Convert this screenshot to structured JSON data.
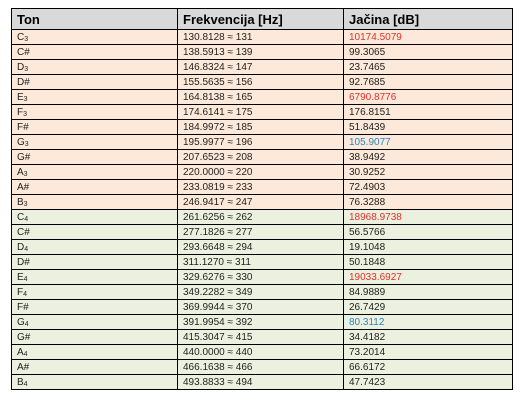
{
  "header": {
    "ton": "Ton",
    "frekvencija": "Frekvencija [Hz]",
    "jacina": "Jačina [dB]"
  },
  "colors": {
    "orange_band": "#fde9d9",
    "green_band": "#ebf1de",
    "header_bg": "#d9d9d9",
    "red_value": "#e0302a",
    "blue_value": "#2e86c1"
  },
  "rows": [
    {
      "note": "C",
      "octave": "3",
      "freq": "130.8128 ≈ 131",
      "db": "10174.5079",
      "band": "orange",
      "db_color": "red"
    },
    {
      "note": "C#",
      "octave": "",
      "freq": "138.5913 ≈ 139",
      "db": "99.3065",
      "band": "orange",
      "db_color": ""
    },
    {
      "note": "D",
      "octave": "3",
      "freq": "146.8324 ≈ 147",
      "db": "23.7465",
      "band": "orange",
      "db_color": ""
    },
    {
      "note": "D#",
      "octave": "",
      "freq": "155.5635 ≈  156",
      "db": "92.7685",
      "band": "orange",
      "db_color": ""
    },
    {
      "note": "E",
      "octave": "3",
      "freq": "164.8138 ≈ 165",
      "db": "6790.8776",
      "band": "orange",
      "db_color": "red"
    },
    {
      "note": "F",
      "octave": "3",
      "freq": "174.6141 ≈ 175",
      "db": "176.8151",
      "band": "orange",
      "db_color": ""
    },
    {
      "note": "F#",
      "octave": "",
      "freq": "184.9972 ≈ 185",
      "db": "51.8439",
      "band": "orange",
      "db_color": ""
    },
    {
      "note": "G",
      "octave": "3",
      "freq": "195.9977 ≈ 196",
      "db": "105.9077",
      "band": "orange",
      "db_color": "blue"
    },
    {
      "note": "G#",
      "octave": "",
      "freq": "207.6523 ≈ 208",
      "db": "38.9492",
      "band": "orange",
      "db_color": ""
    },
    {
      "note": "A",
      "octave": "3",
      "freq": "220.0000 ≈ 220",
      "db": "30.9252",
      "band": "orange",
      "db_color": ""
    },
    {
      "note": "A#",
      "octave": "",
      "freq": "233.0819 ≈ 233",
      "db": "72.4903",
      "band": "orange",
      "db_color": ""
    },
    {
      "note": "B",
      "octave": "3",
      "freq": "246.9417 ≈ 247",
      "db": "76.3288",
      "band": "orange",
      "db_color": ""
    },
    {
      "note": "C",
      "octave": "4",
      "freq": "261.6256 ≈ 262",
      "db": "18968.9738",
      "band": "green",
      "db_color": "red"
    },
    {
      "note": "C#",
      "octave": "",
      "freq": "277.1826 ≈ 277",
      "db": "56.5766",
      "band": "green",
      "db_color": ""
    },
    {
      "note": "D",
      "octave": "4",
      "freq": "293.6648 ≈ 294",
      "db": "19.1048",
      "band": "green",
      "db_color": ""
    },
    {
      "note": "D#",
      "octave": "",
      "freq": "311.1270 ≈  311",
      "db": "50.1848",
      "band": "green",
      "db_color": ""
    },
    {
      "note": "E",
      "octave": "4",
      "freq": "329.6276 ≈ 330",
      "db": "19033.6927",
      "band": "green",
      "db_color": "red"
    },
    {
      "note": "F",
      "octave": "4",
      "freq": "349.2282 ≈ 349",
      "db": "84.9889",
      "band": "green",
      "db_color": ""
    },
    {
      "note": "F#",
      "octave": "",
      "freq": "369.9944 ≈ 370",
      "db": "26.7429",
      "band": "green",
      "db_color": ""
    },
    {
      "note": "G",
      "octave": "4",
      "freq": "391.9954 ≈ 392",
      "db": "80.3112",
      "band": "green",
      "db_color": "blue"
    },
    {
      "note": "G#",
      "octave": "",
      "freq": "415.3047 ≈ 415",
      "db": "34.4182",
      "band": "green",
      "db_color": ""
    },
    {
      "note": "A",
      "octave": "4",
      "freq": "440.0000 ≈ 440",
      "db": "73.2014",
      "band": "green",
      "db_color": ""
    },
    {
      "note": "A#",
      "octave": "",
      "freq": "466.1638 ≈ 466",
      "db": "66.6172",
      "band": "green",
      "db_color": ""
    },
    {
      "note": "B",
      "octave": "4",
      "freq": "493.8833 ≈ 494",
      "db": "47.7423",
      "band": "green",
      "db_color": ""
    }
  ]
}
